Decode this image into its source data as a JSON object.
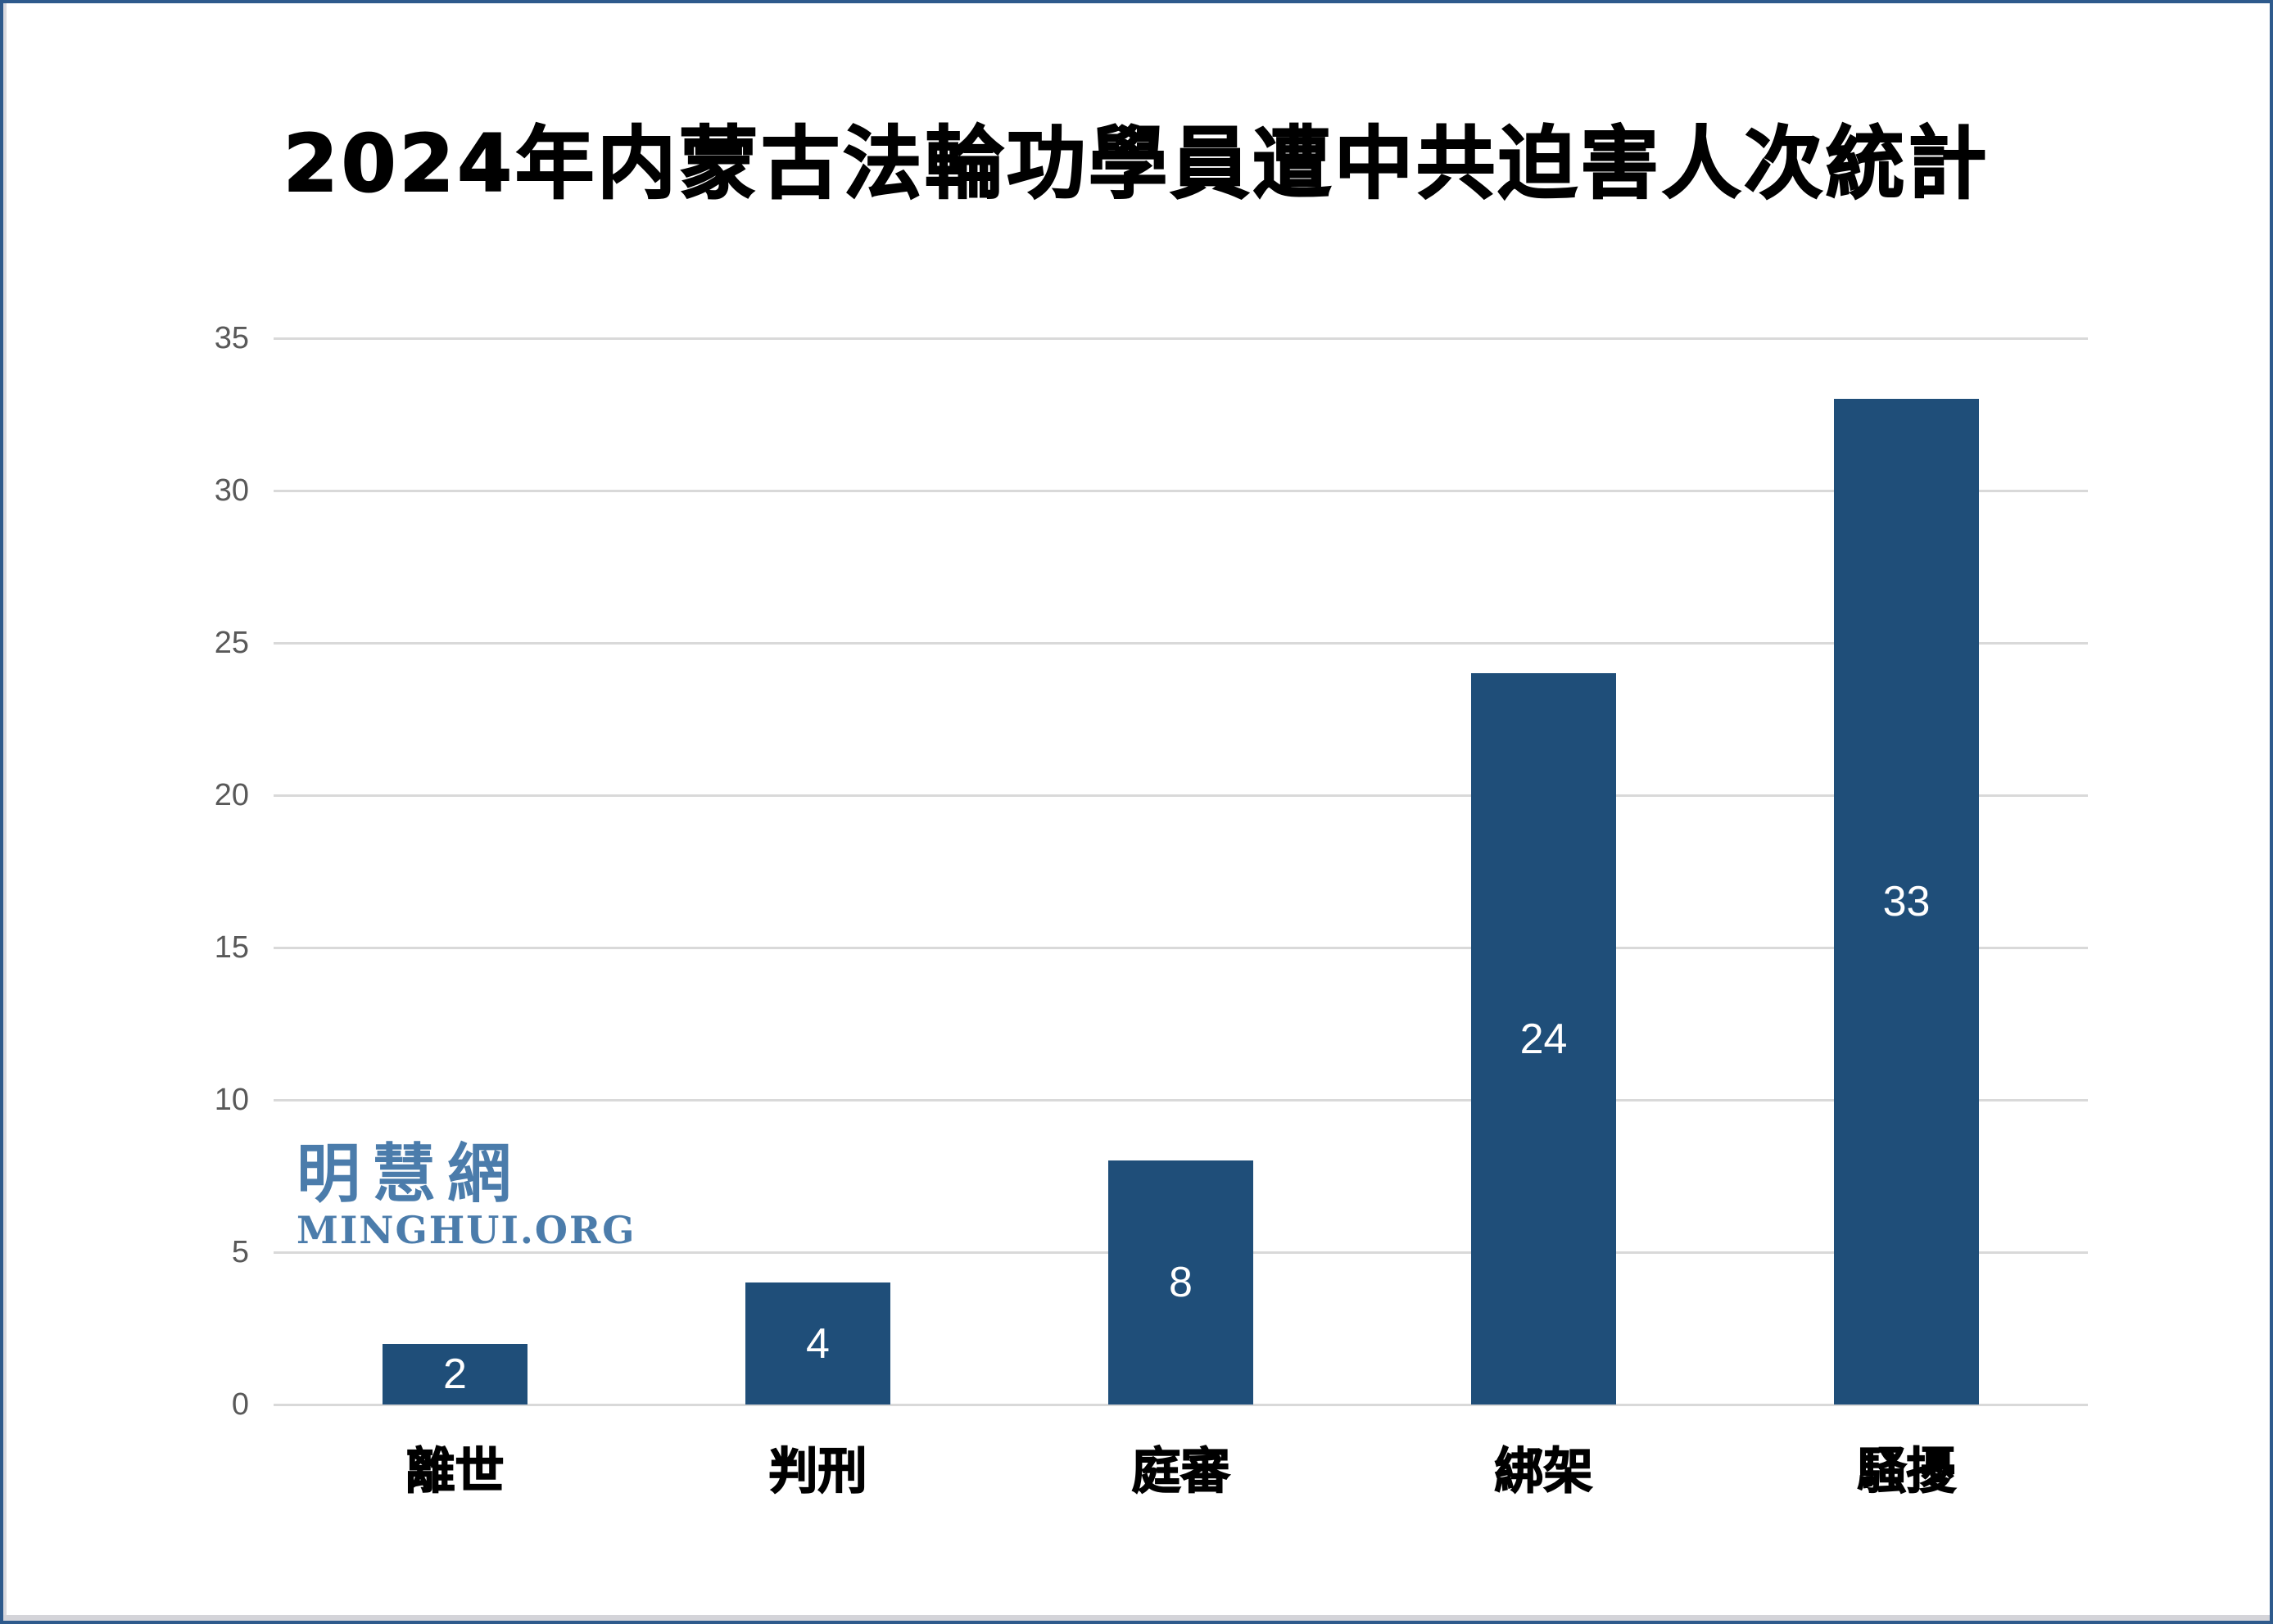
{
  "title": "2024年内蒙古法輪功學員遭中共迫害人次統計",
  "watermark": {
    "cn": "明慧網",
    "en": "MINGHUI.ORG",
    "color": "#4b7cab"
  },
  "colors": {
    "bar": "#1f4e79",
    "bar_value_label": "#ffffff",
    "gridline": "#d9d9d9",
    "axis_text": "#595959",
    "title_text": "#000000",
    "frame_border": "#2e5a8c",
    "background": "#ffffff"
  },
  "chart_data": {
    "type": "bar",
    "title": "2024年内蒙古法輪功學員遭中共迫害人次統計",
    "categories": [
      "離世",
      "判刑",
      "庭審",
      "綁架",
      "騷擾"
    ],
    "values": [
      2,
      4,
      8,
      24,
      33
    ],
    "data_labels": [
      "2",
      "4",
      "8",
      "24",
      "33"
    ],
    "data_label_position": "inside-center",
    "xlabel": "",
    "ylabel": "",
    "ylim": [
      0,
      35
    ],
    "yticks": [
      0,
      5,
      10,
      15,
      20,
      25,
      30,
      35
    ],
    "grid": true,
    "legend": "none",
    "bar_width_fraction": 0.4
  }
}
